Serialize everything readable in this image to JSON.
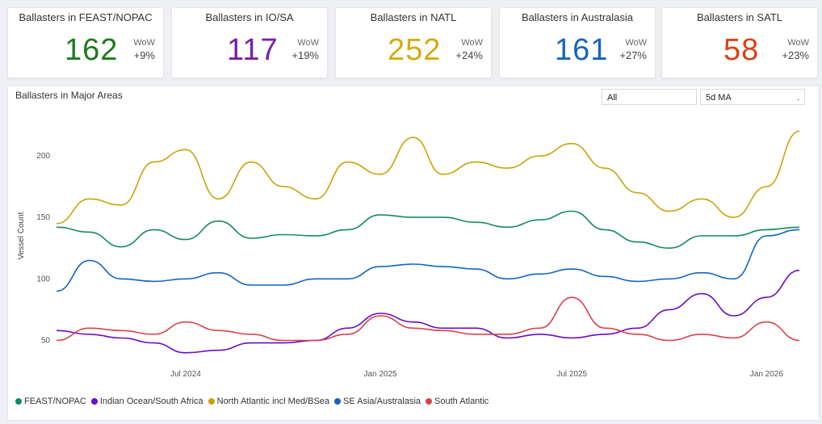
{
  "kpis": [
    {
      "title": "Ballasters in FEAST/NOPAC",
      "value": "162",
      "wow_label": "WoW",
      "wow": "+9%",
      "color": "#1e7a1e"
    },
    {
      "title": "Ballasters in IO/SA",
      "value": "117",
      "wow_label": "WoW",
      "wow": "+19%",
      "color": "#7b1fa2"
    },
    {
      "title": "Ballasters in NATL",
      "value": "252",
      "wow_label": "WoW",
      "wow": "+24%",
      "color": "#d4ac0d"
    },
    {
      "title": "Ballasters in Australasia",
      "value": "161",
      "wow_label": "WoW",
      "wow": "+27%",
      "color": "#1565c0"
    },
    {
      "title": "Ballasters in SATL",
      "value": "58",
      "wow_label": "WoW",
      "wow": "+23%",
      "color": "#d84315"
    }
  ],
  "panel": {
    "title": "Ballasters in Major Areas",
    "filter_value": "All",
    "ma_value": "5d MA",
    "ma_caret": "."
  },
  "chart_data": {
    "type": "line",
    "title": "Ballasters in Major Areas",
    "ylabel": "Vessel Count",
    "xlabel": "",
    "ylim": [
      30,
      240
    ],
    "yticks": [
      50,
      100,
      150,
      200
    ],
    "xrange": [
      "2024-03-01",
      "2026-02-01"
    ],
    "xticks": [
      {
        "date": "2024-07-01",
        "label": "Jul 2024"
      },
      {
        "date": "2025-01-01",
        "label": "Jan 2025"
      },
      {
        "date": "2025-07-01",
        "label": "Jul 2025"
      },
      {
        "date": "2026-01-01",
        "label": "Jan 2026"
      }
    ],
    "series": [
      {
        "name": "FEAST/NOPAC",
        "color": "#138a5e",
        "x": [
          "2024-03",
          "2024-04",
          "2024-05",
          "2024-06",
          "2024-07",
          "2024-08",
          "2024-09",
          "2024-10",
          "2024-11",
          "2024-12",
          "2025-01",
          "2025-02",
          "2025-03",
          "2025-04",
          "2025-05",
          "2025-06",
          "2025-07",
          "2025-08",
          "2025-09",
          "2025-10",
          "2025-11",
          "2025-12",
          "2026-01",
          "2026-02"
        ],
        "values": [
          142,
          138,
          126,
          140,
          132,
          147,
          133,
          136,
          135,
          140,
          152,
          150,
          150,
          146,
          142,
          148,
          155,
          140,
          130,
          125,
          135,
          135,
          140,
          142
        ]
      },
      {
        "name": "Indian Ocean/South Africa",
        "color": "#6a0dc4",
        "x": [
          "2024-03",
          "2024-04",
          "2024-05",
          "2024-06",
          "2024-07",
          "2024-08",
          "2024-09",
          "2024-10",
          "2024-11",
          "2024-12",
          "2025-01",
          "2025-02",
          "2025-03",
          "2025-04",
          "2025-05",
          "2025-06",
          "2025-07",
          "2025-08",
          "2025-09",
          "2025-10",
          "2025-11",
          "2025-12",
          "2026-01",
          "2026-02"
        ],
        "values": [
          58,
          55,
          52,
          48,
          40,
          42,
          48,
          48,
          50,
          60,
          72,
          65,
          60,
          60,
          52,
          55,
          52,
          55,
          60,
          75,
          88,
          70,
          85,
          107
        ]
      },
      {
        "name": "North Atlantic incl Med/BSea",
        "color": "#c9a40c",
        "x": [
          "2024-03",
          "2024-04",
          "2024-05",
          "2024-06",
          "2024-07",
          "2024-08",
          "2024-09",
          "2024-10",
          "2024-11",
          "2024-12",
          "2025-01",
          "2025-02",
          "2025-03",
          "2025-04",
          "2025-05",
          "2025-06",
          "2025-07",
          "2025-08",
          "2025-09",
          "2025-10",
          "2025-11",
          "2025-12",
          "2026-01",
          "2026-02"
        ],
        "values": [
          145,
          165,
          160,
          195,
          205,
          165,
          195,
          175,
          165,
          195,
          185,
          215,
          185,
          195,
          190,
          200,
          210,
          190,
          170,
          155,
          165,
          150,
          175,
          220
        ]
      },
      {
        "name": "SE Asia/Australasia",
        "color": "#1565c0",
        "x": [
          "2024-03",
          "2024-04",
          "2024-05",
          "2024-06",
          "2024-07",
          "2024-08",
          "2024-09",
          "2024-10",
          "2024-11",
          "2024-12",
          "2025-01",
          "2025-02",
          "2025-03",
          "2025-04",
          "2025-05",
          "2025-06",
          "2025-07",
          "2025-08",
          "2025-09",
          "2025-10",
          "2025-11",
          "2025-12",
          "2026-01",
          "2026-02"
        ],
        "values": [
          90,
          115,
          100,
          98,
          100,
          105,
          95,
          95,
          100,
          100,
          110,
          112,
          110,
          108,
          100,
          104,
          108,
          102,
          98,
          100,
          105,
          100,
          135,
          140
        ]
      },
      {
        "name": "South Atlantic",
        "color": "#d9434a",
        "x": [
          "2024-03",
          "2024-04",
          "2024-05",
          "2024-06",
          "2024-07",
          "2024-08",
          "2024-09",
          "2024-10",
          "2024-11",
          "2024-12",
          "2025-01",
          "2025-02",
          "2025-03",
          "2025-04",
          "2025-05",
          "2025-06",
          "2025-07",
          "2025-08",
          "2025-09",
          "2025-10",
          "2025-11",
          "2025-12",
          "2026-01",
          "2026-02"
        ],
        "values": [
          50,
          60,
          58,
          55,
          65,
          58,
          55,
          50,
          50,
          55,
          70,
          60,
          58,
          55,
          55,
          60,
          85,
          60,
          55,
          50,
          55,
          52,
          65,
          50
        ]
      }
    ]
  }
}
